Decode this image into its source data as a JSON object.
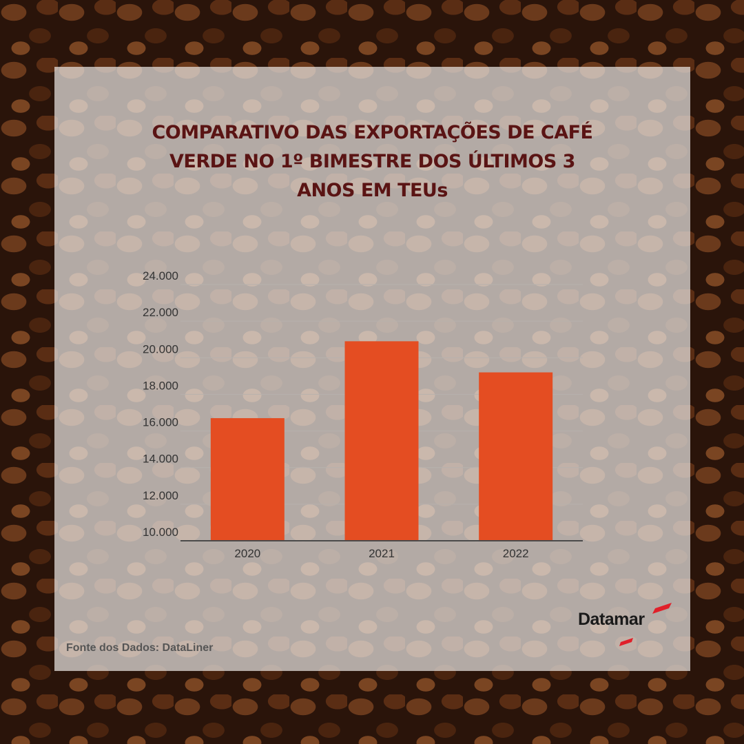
{
  "colors": {
    "bar": "#e44d22",
    "title": "#5a1414",
    "axis_text": "#333333",
    "panel": "rgba(233,229,226,0.72)",
    "logo_accent": "#e0202a"
  },
  "background_icon": "coffee-beans-photo",
  "title_lines": [
    "COMPARATIVO  DAS EXPORTAÇÕES DE CAFÉ",
    "VERDE NO 1º BIMESTRE DOS ÚLTIMOS 3",
    "ANOS EM TEUs"
  ],
  "chart_data": {
    "type": "bar",
    "title": "COMPARATIVO  DAS EXPORTAÇÕES DE CAFÉ VERDE NO 1º BIMESTRE DOS ÚLTIMOS 3 ANOS EM TEUs",
    "categories": [
      "2020",
      "2021",
      "2022"
    ],
    "values": [
      16700,
      20900,
      19200
    ],
    "ylim": [
      10000,
      24000
    ],
    "yticks": [
      10000,
      12000,
      14000,
      16000,
      18000,
      20000,
      22000,
      24000
    ],
    "ytick_labels": [
      "10.000",
      "12.000",
      "14.000",
      "16.000",
      "18.000",
      "20.000",
      "22.000",
      "24.000"
    ],
    "xlabel": "",
    "ylabel": "",
    "grid": true,
    "legend": "none"
  },
  "footer": {
    "source": "Fonte dos Dados: DataLiner"
  },
  "logo": {
    "text": "Datamar"
  }
}
